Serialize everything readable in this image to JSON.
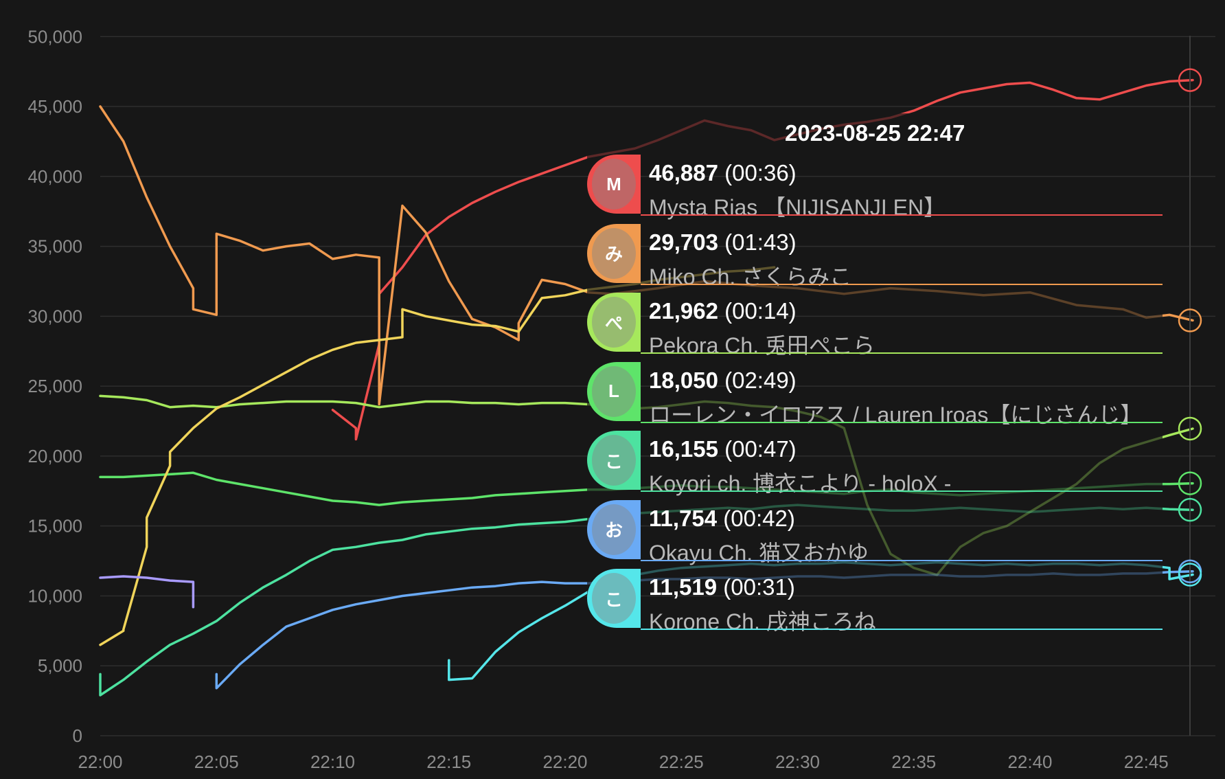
{
  "chart_data": {
    "type": "line",
    "title": "",
    "xlabel": "",
    "ylabel": "",
    "xlim": [
      "22:00",
      "22:47"
    ],
    "ylim": [
      0,
      50000
    ],
    "y_ticks": [
      "0",
      "5,000",
      "10,000",
      "15,000",
      "20,000",
      "25,000",
      "30,000",
      "35,000",
      "40,000",
      "45,000",
      "50,000"
    ],
    "x_ticks": [
      "22:00",
      "22:05",
      "22:10",
      "22:15",
      "22:20",
      "22:25",
      "22:30",
      "22:35",
      "22:40",
      "22:45"
    ],
    "grid": true,
    "series": [
      {
        "name": "Mysta Rias 【NIJISANJI EN】",
        "color": "#ee4d4d",
        "x": [
          "22:10",
          "22:11",
          "22:11",
          "22:12",
          "22:12",
          "22:13",
          "22:14",
          "22:15",
          "22:16",
          "22:17",
          "22:18",
          "22:19",
          "22:20",
          "22:21",
          "22:22",
          "22:23",
          "22:24",
          "22:25",
          "22:26",
          "22:27",
          "22:28",
          "22:29",
          "22:30",
          "22:31",
          "22:32",
          "22:33",
          "22:34",
          "22:35",
          "22:36",
          "22:37",
          "22:38",
          "22:39",
          "22:40",
          "22:41",
          "22:42",
          "22:43",
          "22:44",
          "22:45",
          "22:46",
          "22:47"
        ],
        "values": [
          23300,
          22000,
          21200,
          28000,
          31600,
          33500,
          35800,
          37100,
          38100,
          38900,
          39600,
          40200,
          40800,
          41400,
          41700,
          42000,
          42600,
          43300,
          44000,
          43600,
          43300,
          42600,
          43000,
          43400,
          43700,
          43900,
          44200,
          44700,
          45400,
          46000,
          46300,
          46600,
          46700,
          46200,
          45600,
          45500,
          46000,
          46500,
          46800,
          46887
        ]
      },
      {
        "name": "Miko Ch. さくらみこ",
        "color": "#f09a4f",
        "x": [
          "22:00",
          "22:01",
          "22:02",
          "22:03",
          "22:04",
          "22:04",
          "22:05",
          "22:05",
          "22:06",
          "22:07",
          "22:08",
          "22:09",
          "22:10",
          "22:11",
          "22:12",
          "22:12",
          "22:12",
          "22:13",
          "22:13",
          "22:14",
          "22:15",
          "22:16",
          "22:17",
          "22:18",
          "22:18",
          "22:19",
          "22:20",
          "22:21",
          "22:22",
          "22:24",
          "22:26",
          "22:28",
          "22:30",
          "22:32",
          "22:34",
          "22:36",
          "22:38",
          "22:40",
          "22:42",
          "22:44",
          "22:45",
          "22:46",
          "22:47"
        ],
        "values": [
          45000,
          42500,
          38500,
          35000,
          32000,
          30500,
          30100,
          35900,
          35400,
          34700,
          35000,
          35200,
          34100,
          34400,
          34200,
          23700,
          23700,
          37900,
          37900,
          36000,
          32500,
          29800,
          29200,
          28300,
          29500,
          32600,
          32300,
          31700,
          31600,
          32000,
          32500,
          32200,
          32000,
          31600,
          32000,
          31800,
          31500,
          31700,
          30800,
          30500,
          29900,
          30100,
          29703
        ]
      },
      {
        "name": "Pekora Ch. 兎田ぺこら",
        "color": "#a6e85c",
        "x": [
          "22:00",
          "22:01",
          "22:02",
          "22:03",
          "22:04",
          "22:05",
          "22:06",
          "22:07",
          "22:08",
          "22:09",
          "22:10",
          "22:11",
          "22:12",
          "22:13",
          "22:14",
          "22:15",
          "22:16",
          "22:17",
          "22:18",
          "22:19",
          "22:20",
          "22:21",
          "22:22",
          "22:23",
          "22:24",
          "22:25",
          "22:26",
          "22:27",
          "22:28",
          "22:29",
          "22:30",
          "22:31",
          "22:32",
          "22:33",
          "22:34",
          "22:35",
          "22:36",
          "22:37",
          "22:38",
          "22:39",
          "22:40",
          "22:41",
          "22:42",
          "22:43",
          "22:44",
          "22:45",
          "22:46",
          "22:47"
        ],
        "values": [
          24300,
          24200,
          24000,
          23500,
          23600,
          23500,
          23700,
          23800,
          23900,
          23900,
          23900,
          23800,
          23500,
          23700,
          23900,
          23900,
          23800,
          23800,
          23700,
          23800,
          23800,
          23700,
          23600,
          23400,
          23500,
          23700,
          23900,
          23800,
          23600,
          23500,
          23200,
          22800,
          22000,
          16500,
          13000,
          12000,
          11500,
          13500,
          14500,
          15000,
          16000,
          17000,
          18000,
          19500,
          20500,
          21000,
          21500,
          21962
        ]
      },
      {
        "name": "ローレン・イロアス / Lauren Iroas【にじさんじ】",
        "color": "#5ee46a",
        "x": [
          "22:00",
          "22:01",
          "22:02",
          "22:03",
          "22:04",
          "22:05",
          "22:06",
          "22:07",
          "22:08",
          "22:09",
          "22:10",
          "22:11",
          "22:12",
          "22:13",
          "22:14",
          "22:15",
          "22:16",
          "22:17",
          "22:18",
          "22:19",
          "22:20",
          "22:21",
          "22:22",
          "22:23",
          "22:24",
          "22:25",
          "22:26",
          "22:27",
          "22:28",
          "22:29",
          "22:30",
          "22:31",
          "22:32",
          "22:33",
          "22:34",
          "22:35",
          "22:36",
          "22:37",
          "22:38",
          "22:39",
          "22:40",
          "22:41",
          "22:42",
          "22:43",
          "22:44",
          "22:45",
          "22:46",
          "22:47"
        ],
        "values": [
          18500,
          18500,
          18600,
          18700,
          18800,
          18300,
          18000,
          17700,
          17400,
          17100,
          16800,
          16700,
          16500,
          16700,
          16800,
          16900,
          17000,
          17200,
          17300,
          17400,
          17500,
          17600,
          17600,
          17700,
          17800,
          17900,
          17800,
          17800,
          17700,
          17600,
          17500,
          17400,
          17300,
          17500,
          17600,
          17400,
          17300,
          17200,
          17300,
          17400,
          17500,
          17600,
          17700,
          17800,
          17900,
          18000,
          18000,
          18050
        ]
      },
      {
        "name": "Koyori ch. 博衣こより - holoX -",
        "color": "#4de2a0",
        "x": [
          "22:00",
          "22:00",
          "22:01",
          "22:02",
          "22:03",
          "22:04",
          "22:05",
          "22:06",
          "22:07",
          "22:08",
          "22:09",
          "22:10",
          "22:11",
          "22:12",
          "22:13",
          "22:14",
          "22:15",
          "22:16",
          "22:17",
          "22:18",
          "22:19",
          "22:20",
          "22:21",
          "22:22",
          "22:23",
          "22:24",
          "22:25",
          "22:26",
          "22:27",
          "22:28",
          "22:29",
          "22:30",
          "22:31",
          "22:32",
          "22:33",
          "22:34",
          "22:35",
          "22:36",
          "22:37",
          "22:38",
          "22:39",
          "22:40",
          "22:41",
          "22:42",
          "22:43",
          "22:44",
          "22:45",
          "22:46",
          "22:47"
        ],
        "values": [
          4400,
          2900,
          4000,
          5300,
          6500,
          7300,
          8200,
          9500,
          10600,
          11500,
          12500,
          13300,
          13500,
          13800,
          14000,
          14400,
          14600,
          14800,
          14900,
          15100,
          15200,
          15300,
          15500,
          15700,
          15900,
          16000,
          16100,
          16200,
          16300,
          16200,
          16400,
          16500,
          16400,
          16300,
          16200,
          16100,
          16100,
          16200,
          16300,
          16200,
          16100,
          16000,
          16100,
          16200,
          16300,
          16200,
          16300,
          16200,
          16155
        ]
      },
      {
        "name": "Okayu Ch. 猫又おかゆ",
        "color": "#6aaaf5",
        "x": [
          "22:05",
          "22:05",
          "22:06",
          "22:07",
          "22:08",
          "22:09",
          "22:10",
          "22:11",
          "22:12",
          "22:13",
          "22:14",
          "22:15",
          "22:16",
          "22:17",
          "22:18",
          "22:19",
          "22:20",
          "22:21",
          "22:22",
          "22:23",
          "22:24",
          "22:25",
          "22:26",
          "22:27",
          "22:28",
          "22:29",
          "22:30",
          "22:31",
          "22:32",
          "22:33",
          "22:34",
          "22:35",
          "22:36",
          "22:37",
          "22:38",
          "22:39",
          "22:40",
          "22:41",
          "22:42",
          "22:43",
          "22:44",
          "22:45",
          "22:46",
          "22:47"
        ],
        "values": [
          4400,
          3400,
          5100,
          6500,
          7800,
          8400,
          9000,
          9400,
          9700,
          10000,
          10200,
          10400,
          10600,
          10700,
          10900,
          11000,
          10900,
          10900,
          11000,
          11100,
          11200,
          11200,
          11300,
          11300,
          11200,
          11300,
          11400,
          11400,
          11300,
          11400,
          11500,
          11500,
          11500,
          11400,
          11400,
          11500,
          11500,
          11600,
          11500,
          11500,
          11600,
          11600,
          11700,
          11754
        ]
      },
      {
        "name": "Korone Ch. 戌神ころね",
        "color": "#55e6ea",
        "x": [
          "22:15",
          "22:15",
          "22:16",
          "22:17",
          "22:18",
          "22:19",
          "22:20",
          "22:21",
          "22:22",
          "22:23",
          "22:24",
          "22:25",
          "22:26",
          "22:27",
          "22:28",
          "22:29",
          "22:30",
          "22:31",
          "22:32",
          "22:33",
          "22:34",
          "22:35",
          "22:36",
          "22:37",
          "22:38",
          "22:39",
          "22:40",
          "22:41",
          "22:42",
          "22:43",
          "22:44",
          "22:45",
          "22:46",
          "22:46",
          "22:47"
        ],
        "values": [
          5400,
          4000,
          4100,
          6000,
          7400,
          8400,
          9300,
          10300,
          11000,
          11500,
          11800,
          12000,
          12100,
          12200,
          12300,
          12200,
          12300,
          12300,
          12400,
          12300,
          12200,
          12300,
          12400,
          12300,
          12200,
          12300,
          12200,
          12300,
          12300,
          12200,
          12300,
          12200,
          12000,
          11200,
          11519
        ]
      },
      {
        "name": "",
        "color": "#f0d45a",
        "x": [
          "22:00",
          "22:01",
          "22:01",
          "22:02",
          "22:02",
          "22:03",
          "22:03",
          "22:04",
          "22:05",
          "22:06",
          "22:07",
          "22:08",
          "22:09",
          "22:10",
          "22:11",
          "22:12",
          "22:13",
          "22:13",
          "22:14",
          "22:15",
          "22:16",
          "22:17",
          "22:18",
          "22:19",
          "22:20",
          "22:21",
          "22:22",
          "22:23",
          "22:24",
          "22:25",
          "22:26",
          "22:27",
          "22:28",
          "22:29"
        ],
        "values": [
          6500,
          7500,
          7600,
          13500,
          15600,
          19300,
          20300,
          22000,
          23400,
          24200,
          25100,
          26000,
          26900,
          27600,
          28100,
          28300,
          28500,
          30500,
          30000,
          29700,
          29400,
          29300,
          28900,
          31300,
          31500,
          31900,
          32100,
          32300,
          32600,
          32800,
          33000,
          33200,
          33300,
          33500
        ]
      },
      {
        "name": "",
        "color": "#a99bff",
        "x": [
          "22:00",
          "22:01",
          "22:02",
          "22:03",
          "22:04",
          "22:04",
          "22:04"
        ],
        "values": [
          11300,
          11400,
          11300,
          11100,
          11000,
          9200,
          9200
        ]
      }
    ],
    "end_markers": [
      46887,
      29703,
      21962,
      18050,
      16155,
      11754,
      11519
    ]
  },
  "tooltip": {
    "time": "2023-08-25 22:47",
    "rows": [
      {
        "value": "46,887",
        "duration": "(00:36)",
        "name": "Mysta Rias 【NIJISANJI EN】",
        "color": "#ee4d4d",
        "avatar_icon": "mysta-avatar-icon",
        "initial": "M"
      },
      {
        "value": "29,703",
        "duration": "(01:43)",
        "name": "Miko Ch. さくらみこ",
        "color": "#f09a4f",
        "avatar_icon": "miko-avatar-icon",
        "initial": "み"
      },
      {
        "value": "21,962",
        "duration": "(00:14)",
        "name": "Pekora Ch. 兎田ぺこら",
        "color": "#a6e85c",
        "avatar_icon": "pekora-avatar-icon",
        "initial": "ぺ"
      },
      {
        "value": "18,050",
        "duration": "(02:49)",
        "name": "ローレン・イロアス / Lauren Iroas【にじさんじ】",
        "color": "#5ee46a",
        "avatar_icon": "lauren-avatar-icon",
        "initial": "L"
      },
      {
        "value": "16,155",
        "duration": "(00:47)",
        "name": "Koyori ch. 博衣こより - holoX -",
        "color": "#4de2a0",
        "avatar_icon": "koyori-avatar-icon",
        "initial": "こ"
      },
      {
        "value": "11,754",
        "duration": "(00:42)",
        "name": "Okayu Ch. 猫又おかゆ",
        "color": "#6aaaf5",
        "avatar_icon": "okayu-avatar-icon",
        "initial": "お"
      },
      {
        "value": "11,519",
        "duration": "(00:31)",
        "name": "Korone Ch. 戌神ころね",
        "color": "#55e6ea",
        "avatar_icon": "korone-avatar-icon",
        "initial": "こ"
      }
    ]
  }
}
